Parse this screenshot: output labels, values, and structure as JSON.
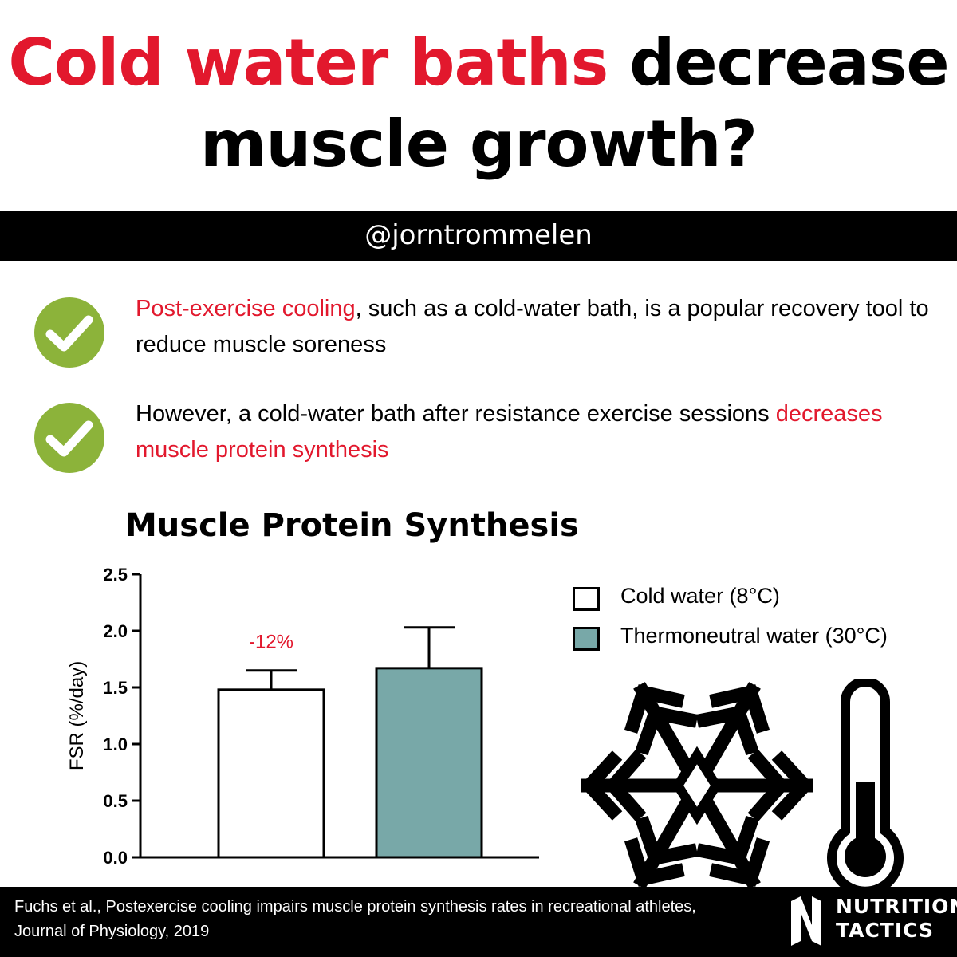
{
  "header": {
    "title_red": "Cold water baths",
    "title_rest": " decrease",
    "title_line2": "muscle growth?",
    "handle": "@jorntrommelen"
  },
  "points": [
    {
      "highlight": "Post-exercise cooling",
      "text": ", such as a cold-water bath, is a popular recovery tool to reduce muscle soreness"
    },
    {
      "text": "However, a cold-water bath after resistance exercise sessions ",
      "highlight": "decreases muscle protein synthesis"
    }
  ],
  "chart_data": {
    "type": "bar",
    "title": "Muscle Protein Synthesis",
    "ylabel": "FSR (%/day)",
    "ylim": [
      0,
      2.5
    ],
    "yticks": [
      "0.0",
      "0.5",
      "1.0",
      "1.5",
      "2.0",
      "2.5"
    ],
    "categories": [
      "Cold water (8°C)",
      "Thermoneutral water (30°C)"
    ],
    "values": [
      1.48,
      1.67
    ],
    "error_upper": [
      1.65,
      2.03
    ],
    "annotation": "-12%",
    "legend_position": "top-right",
    "colors": {
      "cold": "#ffffff",
      "thermoneutral": "#78a8a8"
    }
  },
  "legend": [
    {
      "label": "Cold water (8°C)"
    },
    {
      "label": "Thermoneutral water (30°C)"
    }
  ],
  "icons": [
    "check-icon",
    "snowflake-icon",
    "thermometer-icon",
    "nutrition-tactics-logo-icon"
  ],
  "colors": {
    "accent": "#e2182d",
    "check": "#8cb33a",
    "bar_thermoneutral": "#78a8a8"
  },
  "footer": {
    "citation_line1": "Fuchs et al., Postexercise cooling impairs muscle protein synthesis rates in recreational athletes,",
    "citation_line2": "Journal of Physiology, 2019",
    "brand_line1": "NUTRITION",
    "brand_line2": "TACTICS"
  }
}
